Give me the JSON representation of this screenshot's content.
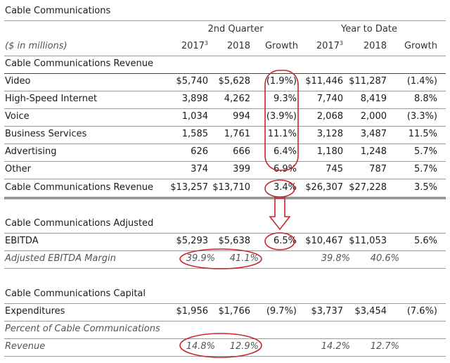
{
  "title": "Cable Communications",
  "header": {
    "group_quarter": "2nd Quarter",
    "group_ytd": "Year to Date",
    "units": "($ in millions)",
    "col_2017": "2017",
    "col_2017_sup": "3",
    "col_2018": "2018",
    "col_growth": "Growth"
  },
  "section_title": "Cable Communications Revenue",
  "revenue_rows": [
    {
      "label": "Video",
      "q2017": "$5,740",
      "q2018": "$5,628",
      "qgrowth": "(1.9%)",
      "y2017": "$11,446",
      "y2018": "$11,287",
      "ygrowth": "(1.4%)"
    },
    {
      "label": "High-Speed Internet",
      "q2017": "3,898",
      "q2018": "4,262",
      "qgrowth": "9.3%",
      "y2017": "7,740",
      "y2018": "8,419",
      "ygrowth": "8.8%"
    },
    {
      "label": "Voice",
      "q2017": "1,034",
      "q2018": "994",
      "qgrowth": "(3.9%)",
      "y2017": "2,068",
      "y2018": "2,000",
      "ygrowth": "(3.3%)"
    },
    {
      "label": "Business Services",
      "q2017": "1,585",
      "q2018": "1,761",
      "qgrowth": "11.1%",
      "y2017": "3,128",
      "y2018": "3,487",
      "ygrowth": "11.5%"
    },
    {
      "label": "Advertising",
      "q2017": "626",
      "q2018": "666",
      "qgrowth": "6.4%",
      "y2017": "1,180",
      "y2018": "1,248",
      "ygrowth": "5.7%"
    },
    {
      "label": "Other",
      "q2017": "374",
      "q2018": "399",
      "qgrowth": "6.9%",
      "y2017": "745",
      "y2018": "787",
      "ygrowth": "5.7%"
    }
  ],
  "revenue_total": {
    "label": "Cable Communications Revenue",
    "q2017": "$13,257",
    "q2018": "$13,710",
    "qgrowth": "3.4%",
    "y2017": "$26,307",
    "y2018": "$27,228",
    "ygrowth": "3.5%"
  },
  "ebitda": {
    "label_line1": "Cable Communications Adjusted",
    "label_line2": "EBITDA",
    "q2017": "$5,293",
    "q2018": "$5,638",
    "qgrowth": "6.5%",
    "y2017": "$10,467",
    "y2018": "$11,053",
    "ygrowth": "5.6%"
  },
  "margin": {
    "label": "Adjusted EBITDA Margin",
    "q2017": "39.9%",
    "q2018": "41.1%",
    "y2017": "39.8%",
    "y2018": "40.6%"
  },
  "capex": {
    "label_line1": "Cable Communications Capital",
    "label_line2": "Expenditures",
    "q2017": "$1,956",
    "q2018": "$1,766",
    "qgrowth": "(9.7%)",
    "y2017": "$3,737",
    "y2018": "$3,454",
    "ygrowth": "(7.6%)"
  },
  "pct_revenue": {
    "label_line1": "Percent of Cable Communications",
    "label_line2": "Revenue",
    "q2017": "14.8%",
    "q2018": "12.9%",
    "y2017": "14.2%",
    "y2018": "12.7%"
  },
  "annotation_color": "#c8262c"
}
